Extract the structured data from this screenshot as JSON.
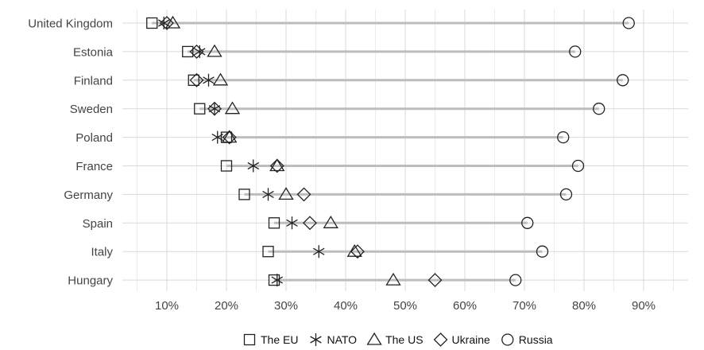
{
  "chart_data": {
    "type": "dot-range",
    "categories": [
      "United Kingdom",
      "Estonia",
      "Finland",
      "Sweden",
      "Poland",
      "France",
      "Germany",
      "Spain",
      "Italy",
      "Hungary"
    ],
    "series": [
      {
        "name": "The EU",
        "marker": "square",
        "values": [
          7.5,
          13.5,
          14.5,
          15.5,
          20,
          20,
          23,
          28,
          27,
          28
        ]
      },
      {
        "name": "NATO",
        "marker": "asterisk",
        "values": [
          9.5,
          15.5,
          17,
          18,
          18.5,
          24.5,
          27,
          31,
          35.5,
          28.5
        ]
      },
      {
        "name": "The US",
        "marker": "triangle",
        "values": [
          11,
          18,
          19,
          21,
          20.5,
          28.5,
          30,
          37.5,
          41.5,
          48
        ]
      },
      {
        "name": "Ukraine",
        "marker": "diamond",
        "values": [
          10,
          15,
          15,
          18,
          20.5,
          28.5,
          33,
          34,
          42,
          55
        ]
      },
      {
        "name": "Russia",
        "marker": "circle",
        "values": [
          87.5,
          78.5,
          86.5,
          82.5,
          76.5,
          79,
          77,
          70.5,
          73,
          68.5
        ]
      }
    ],
    "x_ticks": [
      "10%",
      "20%",
      "30%",
      "40%",
      "50%",
      "60%",
      "70%",
      "80%",
      "90%"
    ],
    "x_tick_values": [
      10,
      20,
      30,
      40,
      50,
      60,
      70,
      80,
      90
    ],
    "xlim": [
      4,
      100
    ],
    "grid": true,
    "legend_position": "bottom"
  }
}
